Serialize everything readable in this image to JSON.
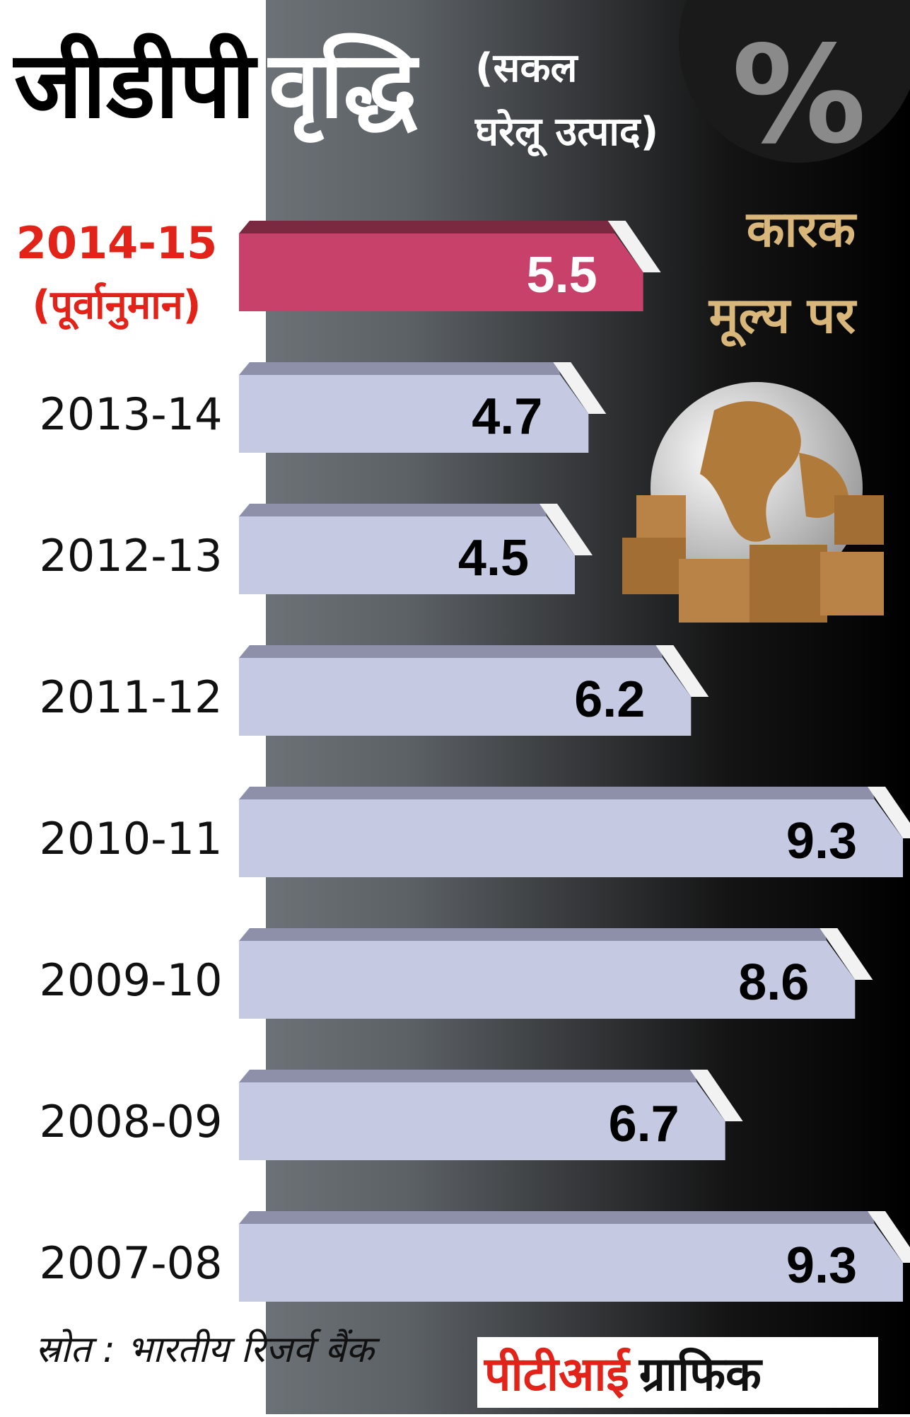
{
  "chart_data": {
    "type": "bar",
    "title": "जीडीपी",
    "title_2": "वृद्धि",
    "subtitle": [
      "(सकल",
      "घरेलू उत्पाद)"
    ],
    "unit": "%",
    "note": [
      "कारक",
      "मूल्य पर"
    ],
    "categories": [
      "2014-15",
      "2013-14",
      "2012-13",
      "2011-12",
      "2010-11",
      "2009-10",
      "2008-09",
      "2007-08"
    ],
    "category_note": "(पूर्वानुमान)",
    "values": [
      5.5,
      4.7,
      4.5,
      6.2,
      9.3,
      8.6,
      6.7,
      9.3
    ],
    "colors": [
      "#c8416b",
      "#c6c9e2",
      "#c6c9e2",
      "#c6c9e2",
      "#c6c9e2",
      "#c6c9e2",
      "#c6c9e2",
      "#c6c9e2"
    ],
    "source": "स्रोत : भारतीय रिजर्व बैंक",
    "credit": {
      "agency": "पीटीआई",
      "label": "ग्राफिक"
    }
  }
}
